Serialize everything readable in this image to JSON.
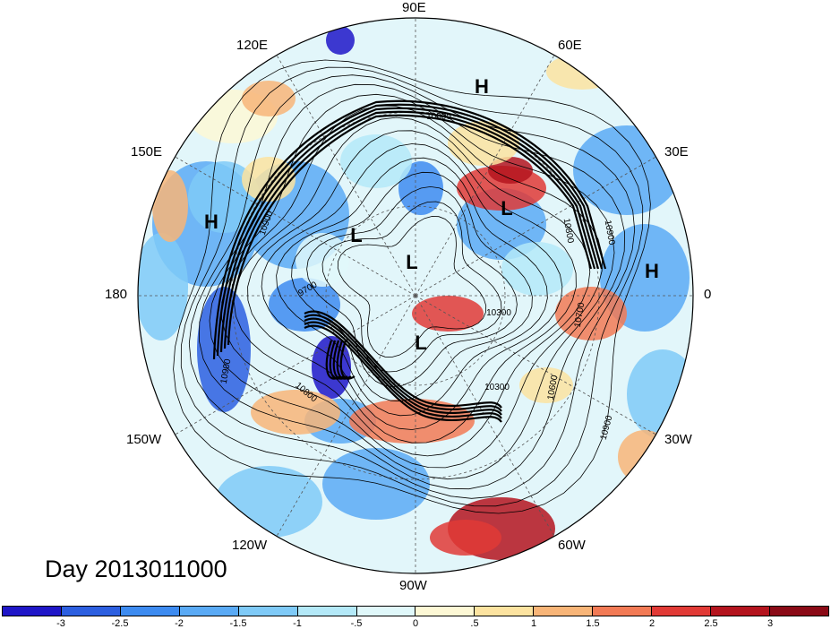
{
  "map": {
    "longitude_labels": {
      "lon_90e": "90E",
      "lon_60e": "60E",
      "lon_30e": "30E",
      "lon_0": "0",
      "lon_30w": "30W",
      "lon_60w": "60W",
      "lon_90w": "90W",
      "lon_120w": "120W",
      "lon_150w": "150W",
      "lon_180": "180",
      "lon_150e": "150E",
      "lon_120e": "120E"
    },
    "pressure_centers": [
      {
        "label": "H"
      },
      {
        "label": "H"
      },
      {
        "label": "H"
      },
      {
        "label": "L"
      },
      {
        "label": "L"
      },
      {
        "label": "L"
      },
      {
        "label": "L"
      }
    ],
    "contour_labels": [
      "10800",
      "10900",
      "10900",
      "9700",
      "10800",
      "10900",
      "10300",
      "10700",
      "10600",
      "10300",
      "10900",
      "10800"
    ]
  },
  "date_label": "Day 2013011000",
  "colorbar": {
    "ticks": [
      "-3",
      "-2.5",
      "-2",
      "-1.5",
      "-1",
      "-.5",
      "0",
      ".5",
      "1",
      "1.5",
      "2",
      "2.5",
      "3"
    ],
    "colors": [
      "#1f16c8",
      "#2c5fe0",
      "#3d8bf0",
      "#5aaaf5",
      "#7fcaf7",
      "#b4e9f8",
      "#e0f8fa",
      "#fdf8d5",
      "#fce3a0",
      "#f8b578",
      "#f27a55",
      "#e13a36",
      "#b4141e",
      "#8a0a16"
    ]
  }
}
